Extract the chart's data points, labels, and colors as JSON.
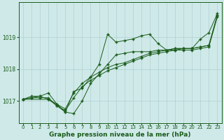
{
  "xlabel": "Graphe pression niveau de la mer (hPa)",
  "bg_color": "#cfe9e9",
  "line_color": "#1a5c1a",
  "grid_color": "#b0d0d0",
  "xlim": [
    -0.5,
    23.5
  ],
  "ylim": [
    1016.3,
    1020.1
  ],
  "yticks": [
    1017,
    1018,
    1019
  ],
  "xticks": [
    0,
    1,
    2,
    3,
    4,
    5,
    6,
    7,
    8,
    9,
    10,
    11,
    12,
    13,
    14,
    15,
    16,
    17,
    18,
    19,
    20,
    21,
    22,
    23
  ],
  "line1_x": [
    0,
    1,
    2,
    3,
    4,
    5,
    6,
    7,
    8,
    9,
    10,
    11,
    12,
    13,
    14,
    15,
    16,
    17,
    18,
    19,
    20,
    21,
    22,
    23
  ],
  "line1_y": [
    1017.05,
    1017.1,
    1017.1,
    1017.1,
    1016.85,
    1016.7,
    1017.1,
    1017.45,
    1017.65,
    1017.8,
    1017.95,
    1018.05,
    1018.15,
    1018.25,
    1018.35,
    1018.45,
    1018.5,
    1018.55,
    1018.6,
    1018.6,
    1018.6,
    1018.65,
    1018.7,
    1019.65
  ],
  "line2_x": [
    0,
    1,
    2,
    3,
    4,
    5,
    6,
    7,
    8,
    9,
    10,
    11,
    12,
    13,
    14,
    15,
    16,
    17,
    18,
    19,
    20,
    21,
    22,
    23
  ],
  "line2_y": [
    1017.05,
    1017.15,
    1017.15,
    1017.05,
    1016.9,
    1016.65,
    1017.3,
    1017.4,
    1017.75,
    1018.15,
    1019.1,
    1018.85,
    1018.9,
    1018.95,
    1019.05,
    1019.1,
    1018.8,
    1018.6,
    1018.6,
    1018.65,
    1018.65,
    1018.95,
    1019.15,
    1019.75
  ],
  "line3_x": [
    0,
    1,
    2,
    3,
    4,
    5,
    6,
    7,
    8,
    9,
    10,
    11,
    12,
    13,
    14,
    15,
    16,
    17,
    18,
    19,
    20,
    21,
    22,
    23
  ],
  "line3_y": [
    1017.05,
    1017.1,
    1017.15,
    1017.25,
    1016.9,
    1016.75,
    1017.25,
    1017.55,
    1017.75,
    1017.9,
    1018.05,
    1018.15,
    1018.2,
    1018.3,
    1018.4,
    1018.5,
    1018.55,
    1018.6,
    1018.65,
    1018.65,
    1018.65,
    1018.7,
    1018.75,
    1019.7
  ],
  "line4_x": [
    0,
    3,
    4,
    5,
    6,
    7,
    8,
    9,
    10,
    11,
    12,
    13,
    14,
    15,
    16,
    17,
    18,
    19,
    20,
    21,
    22,
    23
  ],
  "line4_y": [
    1017.05,
    1017.05,
    1016.85,
    1016.65,
    1016.6,
    1017.0,
    1017.55,
    1017.85,
    1018.15,
    1018.45,
    1018.5,
    1018.55,
    1018.55,
    1018.55,
    1018.6,
    1018.6,
    1018.65,
    1018.65,
    1018.65,
    1018.7,
    1018.75,
    1019.7
  ]
}
